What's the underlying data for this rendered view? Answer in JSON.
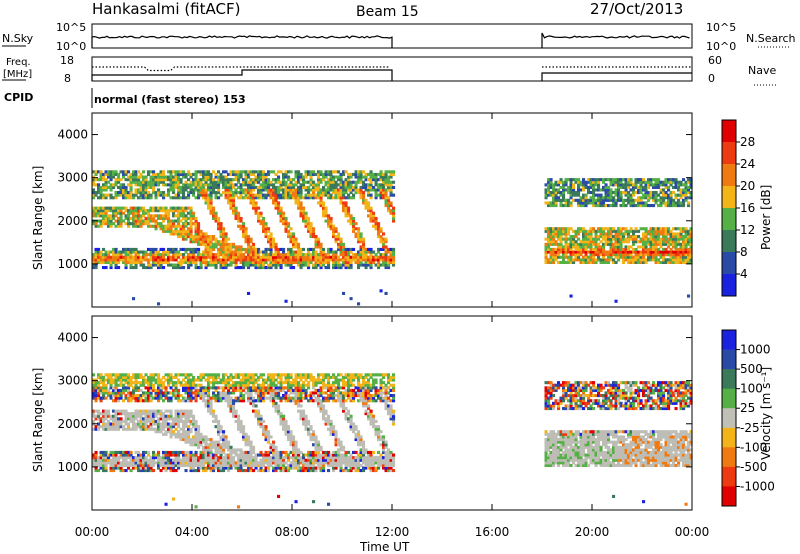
{
  "header": {
    "station": "Hankasalmi (fitACF)",
    "beam": "Beam 15",
    "date": "27/Oct/2013"
  },
  "strip_labels": {
    "nsky": "N.Sky",
    "nsky_top": "10^5",
    "nsky_bottom": "10^0",
    "nsky_right_top": "10^5",
    "nsky_right_bottom": "10^0",
    "nsearch": "N.Search",
    "freq_label": "Freq.",
    "freq_unit": "[MHz]",
    "freq_top": "18",
    "freq_bottom": "8",
    "nave_top": "60",
    "nave_bottom": "0",
    "nave": "Nave",
    "cpid": "CPID",
    "cpid_value": "normal (fast stereo) 153"
  },
  "colors": {
    "power": [
      "#1a22e0",
      "#2a4aa8",
      "#3a7a5a",
      "#55b045",
      "#f2b418",
      "#f07a12",
      "#ee3a10",
      "#e00000"
    ],
    "velocity": [
      "#1a22e0",
      "#2a4aa8",
      "#3a7a5a",
      "#55b045",
      "#c0c0b8",
      "#f2b418",
      "#f07a12",
      "#ee3a10",
      "#e00000"
    ],
    "ground_scatter": "#bdbdb5"
  },
  "chart_data": [
    {
      "type": "heatmap",
      "panel": "power",
      "xlabel": "Time UT",
      "ylabel": "Slant Range [km]",
      "x_ticks": [
        "00:00",
        "04:00",
        "08:00",
        "12:00",
        "16:00",
        "20:00",
        "00:00"
      ],
      "x_range_hours": [
        0,
        24
      ],
      "ylim": [
        0,
        4500
      ],
      "y_ticks": [
        1000,
        2000,
        3000,
        4000
      ],
      "colorbar_title": "Power [dB]",
      "colorbar_ticks": [
        "4",
        "8",
        "12",
        "16",
        "20",
        "24",
        "28"
      ],
      "data_gaps_hours": [
        [
          12,
          18
        ]
      ]
    },
    {
      "type": "heatmap",
      "panel": "velocity",
      "xlabel": "Time UT",
      "ylabel": "Slant Range [km]",
      "x_ticks": [
        "00:00",
        "04:00",
        "08:00",
        "12:00",
        "16:00",
        "20:00",
        "00:00"
      ],
      "x_range_hours": [
        0,
        24
      ],
      "ylim": [
        0,
        4500
      ],
      "y_ticks": [
        1000,
        2000,
        3000,
        4000
      ],
      "colorbar_title": "Velocity [m s-1]",
      "colorbar_ticks": [
        "1000",
        "500",
        "100",
        "25",
        "-25",
        "-100",
        "-500",
        "-1000"
      ],
      "data_gaps_hours": [
        [
          12,
          18
        ]
      ]
    }
  ],
  "axis": {
    "time_title": "Time UT",
    "y_title": "Slant Range [km]",
    "power_bar_title": "Power [dB]",
    "velocity_bar_title": "Velocity [m s⁻¹]"
  }
}
